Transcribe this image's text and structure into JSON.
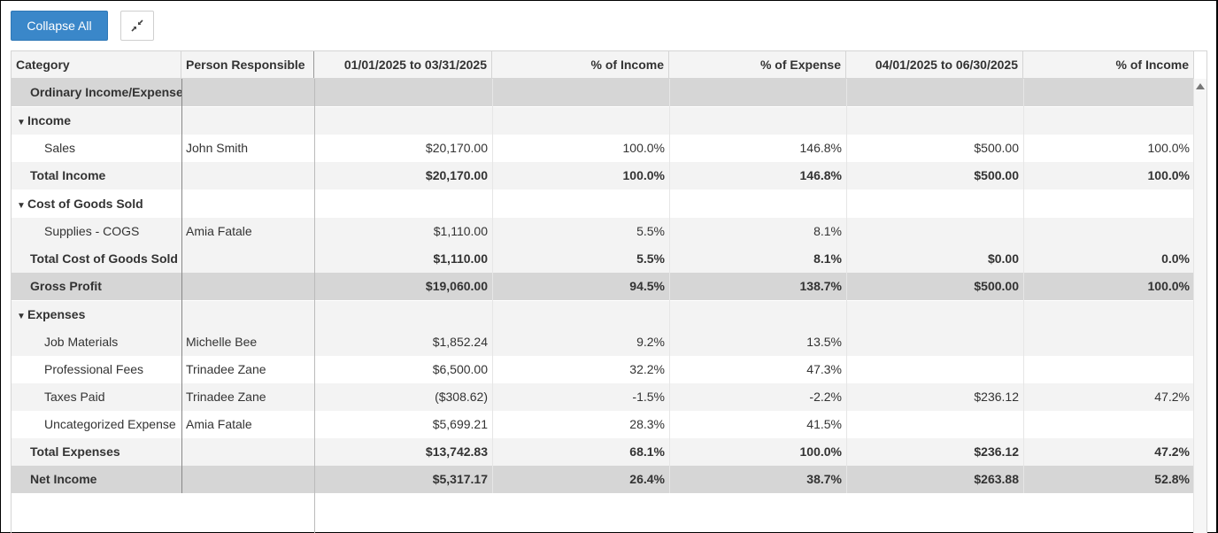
{
  "toolbar": {
    "collapse_all_label": "Collapse All",
    "compress_icon": "compress-arrows-icon"
  },
  "columns": [
    {
      "key": "category",
      "label": "Category",
      "align": "left"
    },
    {
      "key": "person",
      "label": "Person Responsible",
      "align": "left"
    },
    {
      "key": "q1",
      "label": "01/01/2025 to 03/31/2025",
      "align": "right"
    },
    {
      "key": "q1_income",
      "label": "% of Income",
      "align": "right"
    },
    {
      "key": "q1_expense",
      "label": "% of Expense",
      "align": "right"
    },
    {
      "key": "q2",
      "label": "04/01/2025 to 06/30/2025",
      "align": "right"
    },
    {
      "key": "q2_income",
      "label": "% of Income",
      "align": "right"
    }
  ],
  "rows": [
    {
      "type": "section",
      "style": "gray",
      "bold": true,
      "indent": 1,
      "expander": false,
      "category": "Ordinary Income/Expense",
      "person": "",
      "q1": "",
      "q1_income": "",
      "q1_expense": "",
      "q2": "",
      "q2_income": ""
    },
    {
      "type": "group",
      "style": "light",
      "bold": true,
      "indent": 0,
      "expander": true,
      "category": "Income",
      "person": "",
      "q1": "",
      "q1_income": "",
      "q1_expense": "",
      "q2": "",
      "q2_income": ""
    },
    {
      "type": "item",
      "style": "white",
      "bold": false,
      "indent": 2,
      "expander": false,
      "category": "Sales",
      "person": "John Smith",
      "q1": "$20,170.00",
      "q1_income": "100.0%",
      "q1_expense": "146.8%",
      "q2": "$500.00",
      "q2_income": "100.0%"
    },
    {
      "type": "total",
      "style": "light",
      "bold": true,
      "indent": 1,
      "expander": false,
      "category": "Total Income",
      "person": "",
      "q1": "$20,170.00",
      "q1_income": "100.0%",
      "q1_expense": "146.8%",
      "q2": "$500.00",
      "q2_income": "100.0%"
    },
    {
      "type": "group",
      "style": "white",
      "bold": true,
      "indent": 0,
      "expander": true,
      "category": "Cost of Goods Sold",
      "person": "",
      "q1": "",
      "q1_income": "",
      "q1_expense": "",
      "q2": "",
      "q2_income": ""
    },
    {
      "type": "item",
      "style": "light",
      "bold": false,
      "indent": 2,
      "expander": false,
      "category": "Supplies - COGS",
      "person": "Amia Fatale",
      "q1": "$1,110.00",
      "q1_income": "5.5%",
      "q1_expense": "8.1%",
      "q2": "",
      "q2_income": ""
    },
    {
      "type": "total",
      "style": "light",
      "bold": true,
      "indent": 1,
      "expander": false,
      "category": "Total Cost of Goods Sold",
      "person": "",
      "q1": "$1,110.00",
      "q1_income": "5.5%",
      "q1_expense": "8.1%",
      "q2": "$0.00",
      "q2_income": "0.0%"
    },
    {
      "type": "section",
      "style": "gray",
      "bold": true,
      "indent": 1,
      "expander": false,
      "category": "Gross Profit",
      "person": "",
      "q1": "$19,060.00",
      "q1_income": "94.5%",
      "q1_expense": "138.7%",
      "q2": "$500.00",
      "q2_income": "100.0%"
    },
    {
      "type": "group",
      "style": "light",
      "bold": true,
      "indent": 0,
      "expander": true,
      "category": "Expenses",
      "person": "",
      "q1": "",
      "q1_income": "",
      "q1_expense": "",
      "q2": "",
      "q2_income": ""
    },
    {
      "type": "item",
      "style": "light",
      "bold": false,
      "indent": 2,
      "expander": false,
      "category": "Job Materials",
      "person": "Michelle Bee",
      "q1": "$1,852.24",
      "q1_income": "9.2%",
      "q1_expense": "13.5%",
      "q2": "",
      "q2_income": ""
    },
    {
      "type": "item",
      "style": "white",
      "bold": false,
      "indent": 2,
      "expander": false,
      "category": "Professional Fees",
      "person": "Trinadee Zane",
      "q1": "$6,500.00",
      "q1_income": "32.2%",
      "q1_expense": "47.3%",
      "q2": "",
      "q2_income": ""
    },
    {
      "type": "item",
      "style": "light",
      "bold": false,
      "indent": 2,
      "expander": false,
      "category": "Taxes Paid",
      "person": "Trinadee Zane",
      "q1": "($308.62)",
      "q1_income": "-1.5%",
      "q1_expense": "-2.2%",
      "q2": "$236.12",
      "q2_income": "47.2%"
    },
    {
      "type": "item",
      "style": "white",
      "bold": false,
      "indent": 2,
      "expander": false,
      "category": "Uncategorized Expense",
      "person": "Amia Fatale",
      "q1": "$5,699.21",
      "q1_income": "28.3%",
      "q1_expense": "41.5%",
      "q2": "",
      "q2_income": ""
    },
    {
      "type": "total",
      "style": "light",
      "bold": true,
      "indent": 1,
      "expander": false,
      "category": "Total Expenses",
      "person": "",
      "q1": "$13,742.83",
      "q1_income": "68.1%",
      "q1_expense": "100.0%",
      "q2": "$236.12",
      "q2_income": "47.2%"
    },
    {
      "type": "section",
      "style": "gray",
      "bold": true,
      "indent": 1,
      "expander": false,
      "category": "Net Income",
      "person": "",
      "q1": "$5,317.17",
      "q1_income": "26.4%",
      "q1_expense": "38.7%",
      "q2": "$263.88",
      "q2_income": "52.8%"
    }
  ]
}
